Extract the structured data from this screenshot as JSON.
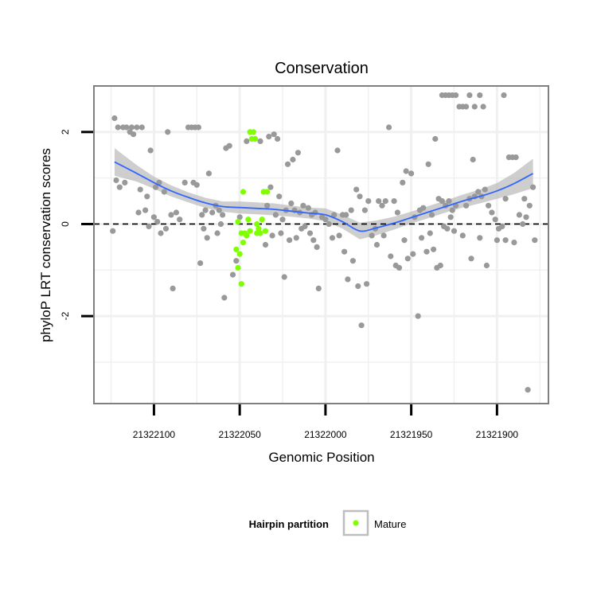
{
  "chart_data": {
    "type": "scatter",
    "title": "Conservation",
    "xlabel": "Genomic Position",
    "ylabel": "phyloP LRT conservation scores",
    "x_reversed": true,
    "xlim": [
      21322135,
      21321870
    ],
    "ylim": [
      -3.9,
      3.0
    ],
    "x_ticks": [
      21322100,
      21322050,
      21322000,
      21321950,
      21321900
    ],
    "x_tick_labels": [
      "21322100",
      "21322050",
      "21322000",
      "21321950",
      "21321900"
    ],
    "y_ticks": [
      2,
      0,
      -2
    ],
    "y_tick_labels": [
      "2",
      "0",
      "-2"
    ],
    "reference_line": {
      "y": 0,
      "style": "dashed"
    },
    "grid": true,
    "legend": {
      "title": "Hairpin partition",
      "position": "bottom",
      "entries": [
        "Mature"
      ]
    },
    "colors": {
      "background_points": "#999999",
      "mature_points": "#7FFF00",
      "smooth_line": "#3366FF",
      "confidence_band": "#BEBEBE",
      "panel_border": "#7F7F7F",
      "grid": "#F0F0F0"
    },
    "series": [
      {
        "name": "",
        "color": "#999999",
        "points": [
          [
            21322123,
            2.3
          ],
          [
            21322121,
            2.1
          ],
          [
            21322118,
            2.1
          ],
          [
            21322116,
            2.1
          ],
          [
            21322113,
            2.1
          ],
          [
            21322110,
            2.1
          ],
          [
            21322107,
            2.1
          ],
          [
            21322122,
            0.95
          ],
          [
            21322120,
            0.8
          ],
          [
            21322117,
            0.9
          ],
          [
            21322114,
            2.0
          ],
          [
            21322112,
            1.95
          ],
          [
            21322108,
            0.75
          ],
          [
            21322104,
            0.6
          ],
          [
            21322102,
            1.6
          ],
          [
            21322099,
            0.8
          ],
          [
            21322097,
            0.9
          ],
          [
            21322094,
            0.7
          ],
          [
            21322092,
            2.0
          ],
          [
            21322090,
            0.2
          ],
          [
            21322124,
            -0.15
          ],
          [
            21322109,
            0.25
          ],
          [
            21322105,
            0.3
          ],
          [
            21322100,
            0.15
          ],
          [
            21322103,
            -0.05
          ],
          [
            21322098,
            0.05
          ],
          [
            21322096,
            -0.2
          ],
          [
            21322093,
            -0.1
          ],
          [
            21322089,
            -1.4
          ],
          [
            21322087,
            0.25
          ],
          [
            21322085,
            0.1
          ],
          [
            21322082,
            0.9
          ],
          [
            21322080,
            2.1
          ],
          [
            21322078,
            2.1
          ],
          [
            21322076,
            2.1
          ],
          [
            21322074,
            2.1
          ],
          [
            21322077,
            0.9
          ],
          [
            21322075,
            0.85
          ],
          [
            21322072,
            0.2
          ],
          [
            21322070,
            0.3
          ],
          [
            21322068,
            1.1
          ],
          [
            21322066,
            0.25
          ],
          [
            21322064,
            0.4
          ],
          [
            21322062,
            0.3
          ],
          [
            21322060,
            0.2
          ],
          [
            21322058,
            1.65
          ],
          [
            21322056,
            1.7
          ],
          [
            21322071,
            -0.1
          ],
          [
            21322069,
            -0.3
          ],
          [
            21322073,
            -0.85
          ],
          [
            21322063,
            -0.2
          ],
          [
            21322061,
            0.0
          ],
          [
            21322059,
            -1.6
          ],
          [
            21322054,
            -1.1
          ],
          [
            21322052,
            -0.8
          ],
          [
            21322050,
            0.15
          ],
          [
            21322046,
            1.8
          ],
          [
            21322038,
            1.8
          ],
          [
            21322033,
            1.9
          ],
          [
            21322030,
            1.95
          ],
          [
            21322028,
            1.85
          ],
          [
            21322036,
            0.7
          ],
          [
            21322032,
            0.8
          ],
          [
            21322034,
            0.4
          ],
          [
            21322029,
            0.2
          ],
          [
            21322027,
            0.6
          ],
          [
            21322025,
            0.1
          ],
          [
            21322023,
            0.3
          ],
          [
            21322022,
            1.3
          ],
          [
            21322019,
            1.4
          ],
          [
            21322016,
            1.55
          ],
          [
            21322020,
            0.45
          ],
          [
            21322018,
            0.3
          ],
          [
            21322015,
            0.25
          ],
          [
            21322013,
            0.4
          ],
          [
            21322010,
            0.35
          ],
          [
            21322008,
            0.2
          ],
          [
            21322006,
            0.25
          ],
          [
            21322035,
            -0.45
          ],
          [
            21322031,
            -0.25
          ],
          [
            21322026,
            -0.2
          ],
          [
            21322024,
            -1.15
          ],
          [
            21322021,
            -0.35
          ],
          [
            21322017,
            -0.3
          ],
          [
            21322014,
            -0.1
          ],
          [
            21322012,
            -0.05
          ],
          [
            21322009,
            -0.2
          ],
          [
            21322007,
            -0.35
          ],
          [
            21322005,
            -0.5
          ],
          [
            21322004,
            -1.4
          ],
          [
            21322002,
            0.15
          ],
          [
            21322000,
            0.1
          ],
          [
            21321998,
            0.0
          ],
          [
            21321995,
            0.2
          ],
          [
            21321993,
            1.6
          ],
          [
            21321990,
            0.2
          ],
          [
            21321988,
            0.2
          ],
          [
            21321985,
            0.3
          ],
          [
            21321982,
            0.75
          ],
          [
            21321980,
            0.6
          ],
          [
            21321977,
            0.3
          ],
          [
            21321975,
            0.5
          ],
          [
            21321996,
            -0.3
          ],
          [
            21321992,
            -0.25
          ],
          [
            21321989,
            -0.6
          ],
          [
            21321987,
            -1.2
          ],
          [
            21321984,
            -0.8
          ],
          [
            21321981,
            -1.35
          ],
          [
            21321979,
            -2.2
          ],
          [
            21321976,
            -1.3
          ],
          [
            21321973,
            -0.25
          ],
          [
            21321971,
            -0.1
          ],
          [
            21321969,
            0.5
          ],
          [
            21321967,
            0.4
          ],
          [
            21321965,
            0.5
          ],
          [
            21321963,
            2.1
          ],
          [
            21321960,
            0.5
          ],
          [
            21321958,
            0.25
          ],
          [
            21321955,
            0.9
          ],
          [
            21321953,
            1.15
          ],
          [
            21321950,
            1.1
          ],
          [
            21321948,
            0.15
          ],
          [
            21321945,
            0.3
          ],
          [
            21321943,
            0.35
          ],
          [
            21321940,
            1.3
          ],
          [
            21321938,
            0.2
          ],
          [
            21321936,
            1.85
          ],
          [
            21321934,
            0.55
          ],
          [
            21321932,
            0.5
          ],
          [
            21321930,
            0.4
          ],
          [
            21321928,
            0.5
          ],
          [
            21321926,
            0.3
          ],
          [
            21321924,
            0.4
          ],
          [
            21321970,
            -0.45
          ],
          [
            21321966,
            -0.25
          ],
          [
            21321962,
            -0.7
          ],
          [
            21321959,
            -0.9
          ],
          [
            21321957,
            -0.95
          ],
          [
            21321954,
            -0.35
          ],
          [
            21321952,
            -0.75
          ],
          [
            21321949,
            -0.65
          ],
          [
            21321946,
            -2.0
          ],
          [
            21321944,
            -0.3
          ],
          [
            21321941,
            -0.6
          ],
          [
            21321939,
            -0.2
          ],
          [
            21321937,
            -0.55
          ],
          [
            21321935,
            -0.95
          ],
          [
            21321933,
            -0.9
          ],
          [
            21321931,
            -0.05
          ],
          [
            21321929,
            -0.1
          ],
          [
            21321927,
            0.15
          ],
          [
            21321925,
            -0.15
          ],
          [
            21321932,
            2.8
          ],
          [
            21321930,
            2.8
          ],
          [
            21321928,
            2.8
          ],
          [
            21321926,
            2.8
          ],
          [
            21321924,
            2.8
          ],
          [
            21321922,
            2.55
          ],
          [
            21321920,
            2.55
          ],
          [
            21321918,
            2.55
          ],
          [
            21321916,
            2.8
          ],
          [
            21321913,
            2.55
          ],
          [
            21321910,
            2.8
          ],
          [
            21321908,
            2.55
          ],
          [
            21321896,
            2.8
          ],
          [
            21321914,
            1.4
          ],
          [
            21321918,
            0.4
          ],
          [
            21321916,
            0.55
          ],
          [
            21321913,
            0.6
          ],
          [
            21321911,
            0.7
          ],
          [
            21321909,
            0.6
          ],
          [
            21321907,
            0.75
          ],
          [
            21321905,
            0.4
          ],
          [
            21321903,
            0.25
          ],
          [
            21321901,
            0.1
          ],
          [
            21321899,
            -0.1
          ],
          [
            21321897,
            -0.05
          ],
          [
            21321895,
            0.55
          ],
          [
            21321893,
            1.45
          ],
          [
            21321891,
            1.45
          ],
          [
            21321889,
            1.45
          ],
          [
            21321887,
            0.2
          ],
          [
            21321885,
            0.0
          ],
          [
            21321883,
            0.15
          ],
          [
            21321881,
            0.4
          ],
          [
            21321879,
            0.8
          ],
          [
            21321920,
            -0.25
          ],
          [
            21321915,
            -0.75
          ],
          [
            21321910,
            -0.3
          ],
          [
            21321906,
            -0.9
          ],
          [
            21321900,
            -0.35
          ],
          [
            21321895,
            -0.35
          ],
          [
            21321890,
            -0.4
          ],
          [
            21321884,
            0.55
          ],
          [
            21321882,
            -3.6
          ],
          [
            21321878,
            -0.35
          ]
        ]
      },
      {
        "name": "Mature",
        "color": "#7FFF00",
        "points": [
          [
            21322044,
            2.0
          ],
          [
            21322042,
            2.0
          ],
          [
            21322043,
            1.85
          ],
          [
            21322041,
            1.85
          ],
          [
            21322048,
            0.7
          ],
          [
            21322036,
            0.7
          ],
          [
            21322034,
            0.7
          ],
          [
            21322051,
            0.05
          ],
          [
            21322045,
            0.1
          ],
          [
            21322040,
            0.0
          ],
          [
            21322037,
            0.1
          ],
          [
            21322049,
            -0.2
          ],
          [
            21322047,
            -0.2
          ],
          [
            21322046,
            -0.25
          ],
          [
            21322044,
            -0.15
          ],
          [
            21322039,
            -0.1
          ],
          [
            21322038,
            -0.2
          ],
          [
            21322035,
            -0.15
          ],
          [
            21322052,
            -0.55
          ],
          [
            21322050,
            -0.65
          ],
          [
            21322048,
            -0.4
          ],
          [
            21322040,
            -0.2
          ],
          [
            21322051,
            -0.95
          ],
          [
            21322049,
            -1.3
          ]
        ]
      }
    ],
    "smooth_fit": {
      "method": "loess",
      "x": [
        21322123,
        21322110,
        21322100,
        21322090,
        21322080,
        21322070,
        21322060,
        21322050,
        21322040,
        21322030,
        21322020,
        21322010,
        21322000,
        21321990,
        21321980,
        21321970,
        21321960,
        21321950,
        21321940,
        21321930,
        21321920,
        21321910,
        21321900,
        21321890,
        21321879
      ],
      "y": [
        1.35,
        1.1,
        0.9,
        0.72,
        0.58,
        0.46,
        0.38,
        0.36,
        0.34,
        0.32,
        0.28,
        0.24,
        0.2,
        0.05,
        -0.15,
        -0.08,
        0.02,
        0.14,
        0.26,
        0.38,
        0.5,
        0.6,
        0.72,
        0.88,
        1.1
      ],
      "lower": [
        1.05,
        0.92,
        0.77,
        0.6,
        0.47,
        0.35,
        0.27,
        0.23,
        0.21,
        0.19,
        0.16,
        0.12,
        0.06,
        -0.1,
        -0.33,
        -0.24,
        -0.12,
        0.01,
        0.13,
        0.25,
        0.36,
        0.45,
        0.55,
        0.65,
        0.78
      ],
      "upper": [
        1.65,
        1.28,
        1.03,
        0.84,
        0.69,
        0.57,
        0.49,
        0.49,
        0.47,
        0.45,
        0.4,
        0.36,
        0.34,
        0.2,
        0.03,
        0.08,
        0.16,
        0.27,
        0.39,
        0.51,
        0.64,
        0.75,
        0.89,
        1.11,
        1.42
      ]
    }
  }
}
